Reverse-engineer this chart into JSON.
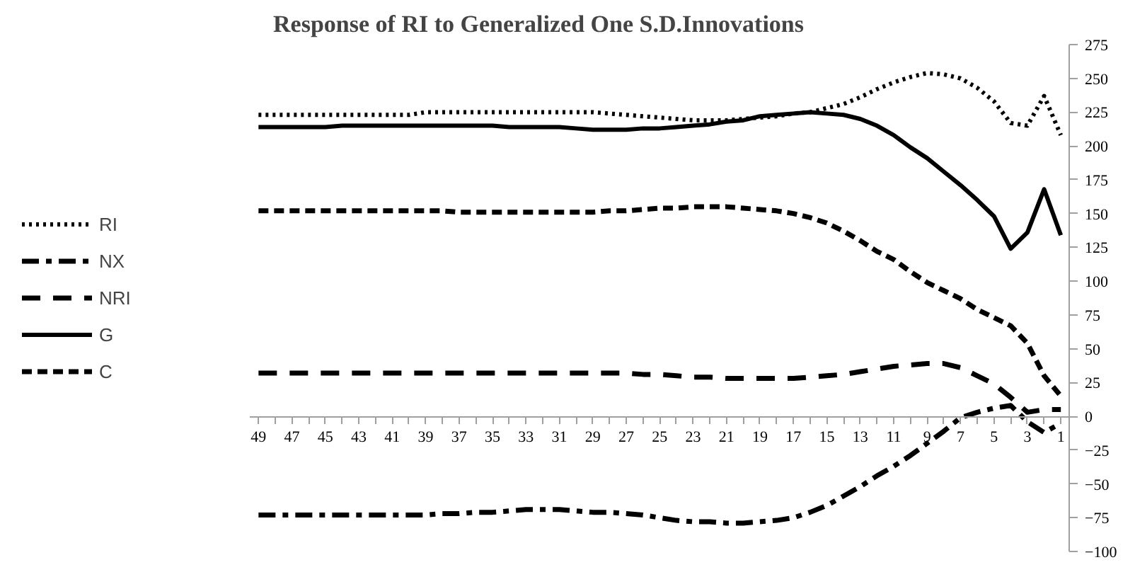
{
  "chart_data": {
    "type": "line",
    "title": "Response of RI to Generalized One S.D.Innovations",
    "categories": [
      "49",
      null,
      "47",
      null,
      "45",
      null,
      "43",
      null,
      "41",
      null,
      "39",
      null,
      "37",
      null,
      "35",
      null,
      "33",
      null,
      "31",
      null,
      "29",
      null,
      "27",
      null,
      "25",
      null,
      "23",
      null,
      "21",
      null,
      "19",
      null,
      "17",
      null,
      "15",
      null,
      "13",
      null,
      "11",
      null,
      "9",
      null,
      "7",
      null,
      "5",
      null,
      "3",
      null,
      "1"
    ],
    "series": [
      {
        "name": "RI",
        "color": "#000000",
        "line_style": "dotted",
        "values": [
          223,
          223,
          223,
          223,
          223,
          223,
          223,
          223,
          223,
          223,
          225,
          225,
          225,
          225,
          225,
          225,
          225,
          225,
          225,
          225,
          225,
          224,
          223,
          222,
          221,
          220,
          219,
          219,
          219,
          220,
          221,
          222,
          224,
          225,
          228,
          231,
          236,
          242,
          247,
          251,
          254,
          253,
          250,
          243,
          233,
          217,
          215,
          237,
          208
        ]
      },
      {
        "name": "NX",
        "color": "#000000",
        "line_style": "dashdot",
        "values": [
          -73,
          -73,
          -73,
          -73,
          -73,
          -73,
          -73,
          -73,
          -73,
          -73,
          -73,
          -72,
          -72,
          -71,
          -71,
          -70,
          -69,
          -69,
          -69,
          -70,
          -71,
          -71,
          -72,
          -73,
          -75,
          -77,
          -78,
          -78,
          -79,
          -79,
          -78,
          -77,
          -75,
          -71,
          -66,
          -59,
          -52,
          -44,
          -37,
          -29,
          -20,
          -11,
          -1,
          3,
          6,
          8,
          -4,
          -12,
          -5
        ]
      },
      {
        "name": "NRI",
        "color": "#000000",
        "line_style": "longdash",
        "values": [
          32,
          32,
          32,
          32,
          32,
          32,
          32,
          32,
          32,
          32,
          32,
          32,
          32,
          32,
          32,
          32,
          32,
          32,
          32,
          32,
          32,
          32,
          32,
          31,
          31,
          30,
          29,
          29,
          28,
          28,
          28,
          28,
          28,
          29,
          30,
          31,
          33,
          35,
          37,
          38,
          39,
          39,
          36,
          30,
          24,
          14,
          3,
          5,
          5
        ]
      },
      {
        "name": "G",
        "color": "#000000",
        "line_style": "solid",
        "values": [
          214,
          214,
          214,
          214,
          214,
          215,
          215,
          215,
          215,
          215,
          215,
          215,
          215,
          215,
          215,
          214,
          214,
          214,
          214,
          213,
          212,
          212,
          212,
          213,
          213,
          214,
          215,
          216,
          218,
          219,
          222,
          223,
          224,
          225,
          224,
          223,
          220,
          215,
          208,
          199,
          191,
          181,
          171,
          160,
          148,
          124,
          136,
          168,
          134
        ]
      },
      {
        "name": "C",
        "color": "#000000",
        "line_style": "dashed",
        "values": [
          152,
          152,
          152,
          152,
          152,
          152,
          152,
          152,
          152,
          152,
          152,
          152,
          151,
          151,
          151,
          151,
          151,
          151,
          151,
          151,
          151,
          152,
          152,
          153,
          154,
          154,
          155,
          155,
          155,
          154,
          153,
          152,
          150,
          147,
          143,
          137,
          130,
          122,
          116,
          107,
          99,
          93,
          87,
          79,
          73,
          67,
          54,
          30,
          15
        ]
      }
    ],
    "ylim": [
      -100,
      275
    ],
    "yticks": [
      -100,
      -75,
      -50,
      -25,
      0,
      25,
      50,
      75,
      100,
      125,
      150,
      175,
      200,
      225,
      250,
      275
    ],
    "grid": false,
    "legend": "left"
  }
}
